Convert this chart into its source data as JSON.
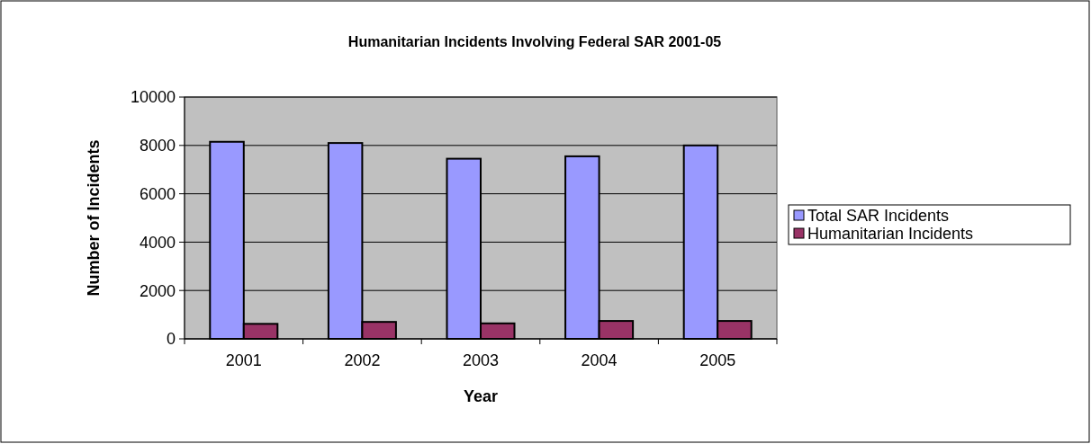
{
  "chart_data": {
    "type": "bar",
    "title": "Humanitarian Incidents Involving Federal SAR 2001-05",
    "xlabel": "Year",
    "ylabel": "Number of Incidents",
    "categories": [
      "2001",
      "2002",
      "2003",
      "2004",
      "2005"
    ],
    "series": [
      {
        "name": "Total SAR Incidents",
        "color": "#9999ff",
        "values": [
          8150,
          8100,
          7450,
          7550,
          8000
        ]
      },
      {
        "name": "Humanitarian Incidents",
        "color": "#993366",
        "values": [
          620,
          700,
          640,
          740,
          740
        ]
      }
    ],
    "ylim": [
      0,
      10000
    ],
    "yticks": [
      0,
      2000,
      4000,
      6000,
      8000,
      10000
    ],
    "grid": "y",
    "legend": "right"
  }
}
